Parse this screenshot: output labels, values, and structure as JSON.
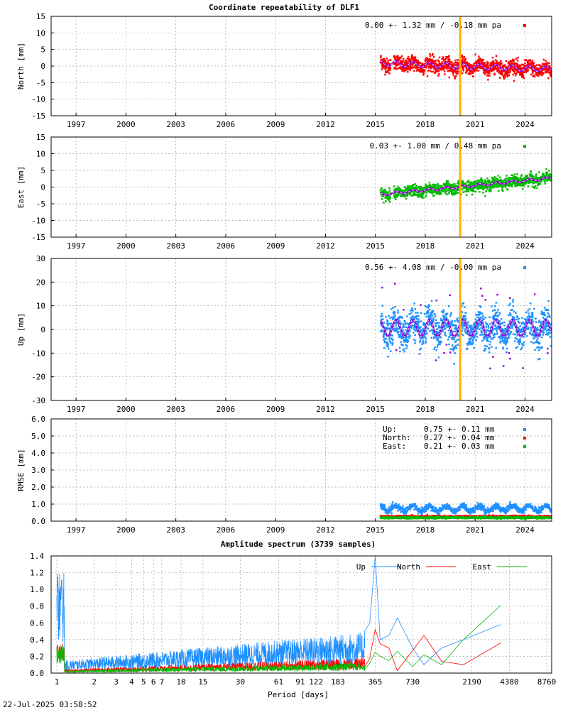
{
  "title": "Coordinate repeatability of DLF1",
  "timestamp": "22-Jul-2025 03:58:52",
  "colors": {
    "north": "#ff0000",
    "east": "#00bb00",
    "up": "#1e90ff",
    "model": "#9400d3",
    "event_line": "#ffb000",
    "grid": "#a0a0a0"
  },
  "chart_data": [
    {
      "type": "scatter",
      "id": "north",
      "ylabel": "North [mm]",
      "ylim": [
        -15,
        15
      ],
      "yticks": [
        "15",
        "10",
        "5",
        "0",
        "-5",
        "-10",
        "-15"
      ],
      "xlim": [
        1995.5,
        2025.6
      ],
      "xticks": [
        "1997",
        "2000",
        "2003",
        "2006",
        "2009",
        "2012",
        "2015",
        "2018",
        "2021",
        "2024"
      ],
      "legend": "0.00 +- 1.32 mm / -0.18 mm pa",
      "data_start": 2015.3,
      "data_end": 2025.55,
      "event": 2020.1,
      "offset": 0.0,
      "trend_mm_per_year": -0.18,
      "scatter_sd": 1.32,
      "seasonal_amplitude": 0.8,
      "grid": true
    },
    {
      "type": "scatter",
      "id": "east",
      "ylabel": "East [mm]",
      "ylim": [
        -15,
        15
      ],
      "yticks": [
        "15",
        "10",
        "5",
        "0",
        "-5",
        "-10",
        "-15"
      ],
      "xlim": [
        1995.5,
        2025.6
      ],
      "xticks": [
        "1997",
        "2000",
        "2003",
        "2006",
        "2009",
        "2012",
        "2015",
        "2018",
        "2021",
        "2024"
      ],
      "legend": "0.03 +- 1.00 mm /  0.48 mm pa",
      "data_start": 2015.3,
      "data_end": 2025.55,
      "event": 2020.1,
      "offset": 0.03,
      "trend_mm_per_year": 0.48,
      "scatter_sd": 1.0,
      "seasonal_amplitude": 0.4,
      "grid": true
    },
    {
      "type": "scatter",
      "id": "up",
      "ylabel": "Up [mm]",
      "ylim": [
        -30,
        30
      ],
      "yticks": [
        "30",
        "20",
        "10",
        "0",
        "-10",
        "-20",
        "-30"
      ],
      "xlim": [
        1995.5,
        2025.6
      ],
      "xticks": [
        "1997",
        "2000",
        "2003",
        "2006",
        "2009",
        "2012",
        "2015",
        "2018",
        "2021",
        "2024"
      ],
      "legend": "0.56 +- 4.08 mm / -0.00 mm pa",
      "data_start": 2015.3,
      "data_end": 2025.55,
      "event": 2020.1,
      "offset": 0.56,
      "trend_mm_per_year": 0.0,
      "scatter_sd": 4.08,
      "seasonal_amplitude": 3.5,
      "grid": true
    },
    {
      "type": "scatter",
      "id": "rmse",
      "ylabel": "RMSE [mm]",
      "ylim": [
        0,
        6
      ],
      "yticks": [
        "6.0",
        "5.0",
        "4.0",
        "3.0",
        "2.0",
        "1.0",
        "0.0"
      ],
      "xlim": [
        1995.5,
        2025.6
      ],
      "xticks": [
        "1997",
        "2000",
        "2003",
        "2006",
        "2009",
        "2012",
        "2015",
        "2018",
        "2021",
        "2024"
      ],
      "legend_rows": [
        {
          "name": "Up:",
          "value": "0.75 +- 0.11 mm"
        },
        {
          "name": "North:",
          "value": "0.27 +- 0.04 mm"
        },
        {
          "name": "East:",
          "value": "0.21 +- 0.03 mm"
        }
      ],
      "series_means": {
        "up": 0.75,
        "north": 0.27,
        "east": 0.21
      },
      "series_sd": {
        "up": 0.11,
        "north": 0.04,
        "east": 0.03
      },
      "data_start": 2015.3,
      "data_end": 2025.55,
      "grid": true
    },
    {
      "type": "line",
      "id": "spectrum",
      "title": "Amplitude spectrum (3739 samples)",
      "xlabel": "Period [days]",
      "ylim": [
        0,
        1.4
      ],
      "yticks": [
        "1.4",
        "1.2",
        "1.0",
        "0.8",
        "0.6",
        "0.4",
        "0.2",
        "0.0"
      ],
      "xticks": [
        "1",
        "2",
        "3",
        "4",
        "5",
        "6",
        "7",
        "10",
        "15",
        "30",
        "61",
        "91",
        "122",
        "183",
        "365",
        "730",
        "2190",
        "4380",
        "8760"
      ],
      "xtick_periods": [
        1,
        2,
        3,
        4,
        5,
        6,
        7,
        10,
        15,
        30,
        61,
        91,
        122,
        183,
        365,
        730,
        2190,
        4380,
        8760
      ],
      "series": [
        {
          "name": "Up",
          "color": "#1e90ff",
          "tail_periods": [
            300,
            330,
            365,
            400,
            470,
            550,
            730,
            900,
            1250,
            1870,
            3740
          ],
          "tail_values": [
            0.5,
            0.6,
            1.4,
            0.4,
            0.45,
            0.66,
            0.3,
            0.1,
            0.3,
            0.4,
            0.58
          ]
        },
        {
          "name": "North",
          "color": "#ff0000",
          "tail_periods": [
            300,
            330,
            365,
            400,
            470,
            550,
            730,
            900,
            1250,
            1870,
            3740
          ],
          "tail_values": [
            0.07,
            0.18,
            0.52,
            0.35,
            0.3,
            0.03,
            0.27,
            0.45,
            0.14,
            0.1,
            0.36
          ]
        },
        {
          "name": "East",
          "color": "#00bb00",
          "tail_periods": [
            300,
            330,
            365,
            400,
            470,
            550,
            730,
            900,
            1250,
            1870,
            3740
          ],
          "tail_values": [
            0.04,
            0.12,
            0.25,
            0.2,
            0.15,
            0.26,
            0.08,
            0.22,
            0.1,
            0.4,
            0.81
          ]
        }
      ],
      "grid": true
    }
  ]
}
